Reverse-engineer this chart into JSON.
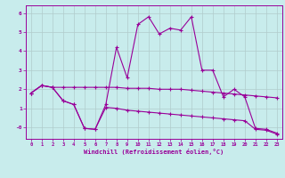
{
  "title": "",
  "xlabel": "Windchill (Refroidissement éolien,°C)",
  "ylabel": "",
  "xlim": [
    -0.5,
    23.5
  ],
  "ylim": [
    -0.6,
    6.4
  ],
  "yticks": [
    0,
    1,
    2,
    3,
    4,
    5,
    6
  ],
  "ytick_labels": [
    "-0",
    "1",
    "2",
    "3",
    "4",
    "5",
    "6"
  ],
  "xticks": [
    0,
    1,
    2,
    3,
    4,
    5,
    6,
    7,
    8,
    9,
    10,
    11,
    12,
    13,
    14,
    15,
    16,
    17,
    18,
    19,
    20,
    21,
    22,
    23
  ],
  "background_color": "#c8ecec",
  "line_color": "#990099",
  "grid_color": "#b0cccc",
  "lines": [
    {
      "x": [
        0,
        1,
        2,
        3,
        4,
        5,
        6,
        7,
        8,
        9,
        10,
        11,
        12,
        13,
        14,
        15,
        16,
        17,
        18,
        19,
        20,
        21,
        22,
        23
      ],
      "y": [
        1.8,
        2.2,
        2.1,
        2.1,
        2.1,
        2.1,
        2.1,
        2.1,
        2.1,
        2.05,
        2.05,
        2.05,
        2.0,
        2.0,
        2.0,
        1.95,
        1.9,
        1.85,
        1.8,
        1.75,
        1.7,
        1.65,
        1.6,
        1.55
      ]
    },
    {
      "x": [
        0,
        1,
        2,
        3,
        4,
        5,
        6,
        7,
        8,
        9,
        10,
        11,
        12,
        13,
        14,
        15,
        16,
        17,
        18,
        19,
        20,
        21,
        22,
        23
      ],
      "y": [
        1.8,
        2.2,
        2.1,
        1.4,
        1.2,
        -0.05,
        -0.1,
        1.2,
        4.2,
        2.6,
        5.4,
        5.8,
        4.9,
        5.2,
        5.1,
        5.8,
        3.0,
        3.0,
        1.6,
        2.0,
        1.6,
        -0.05,
        -0.1,
        -0.3
      ]
    },
    {
      "x": [
        0,
        1,
        2,
        3,
        4,
        5,
        6,
        7,
        8,
        9,
        10,
        11,
        12,
        13,
        14,
        15,
        16,
        17,
        18,
        19,
        20,
        21,
        22,
        23
      ],
      "y": [
        1.8,
        2.2,
        2.1,
        1.4,
        1.2,
        -0.05,
        -0.1,
        1.05,
        1.0,
        0.9,
        0.85,
        0.8,
        0.75,
        0.7,
        0.65,
        0.6,
        0.55,
        0.5,
        0.45,
        0.4,
        0.35,
        -0.1,
        -0.15,
        -0.35
      ]
    }
  ]
}
